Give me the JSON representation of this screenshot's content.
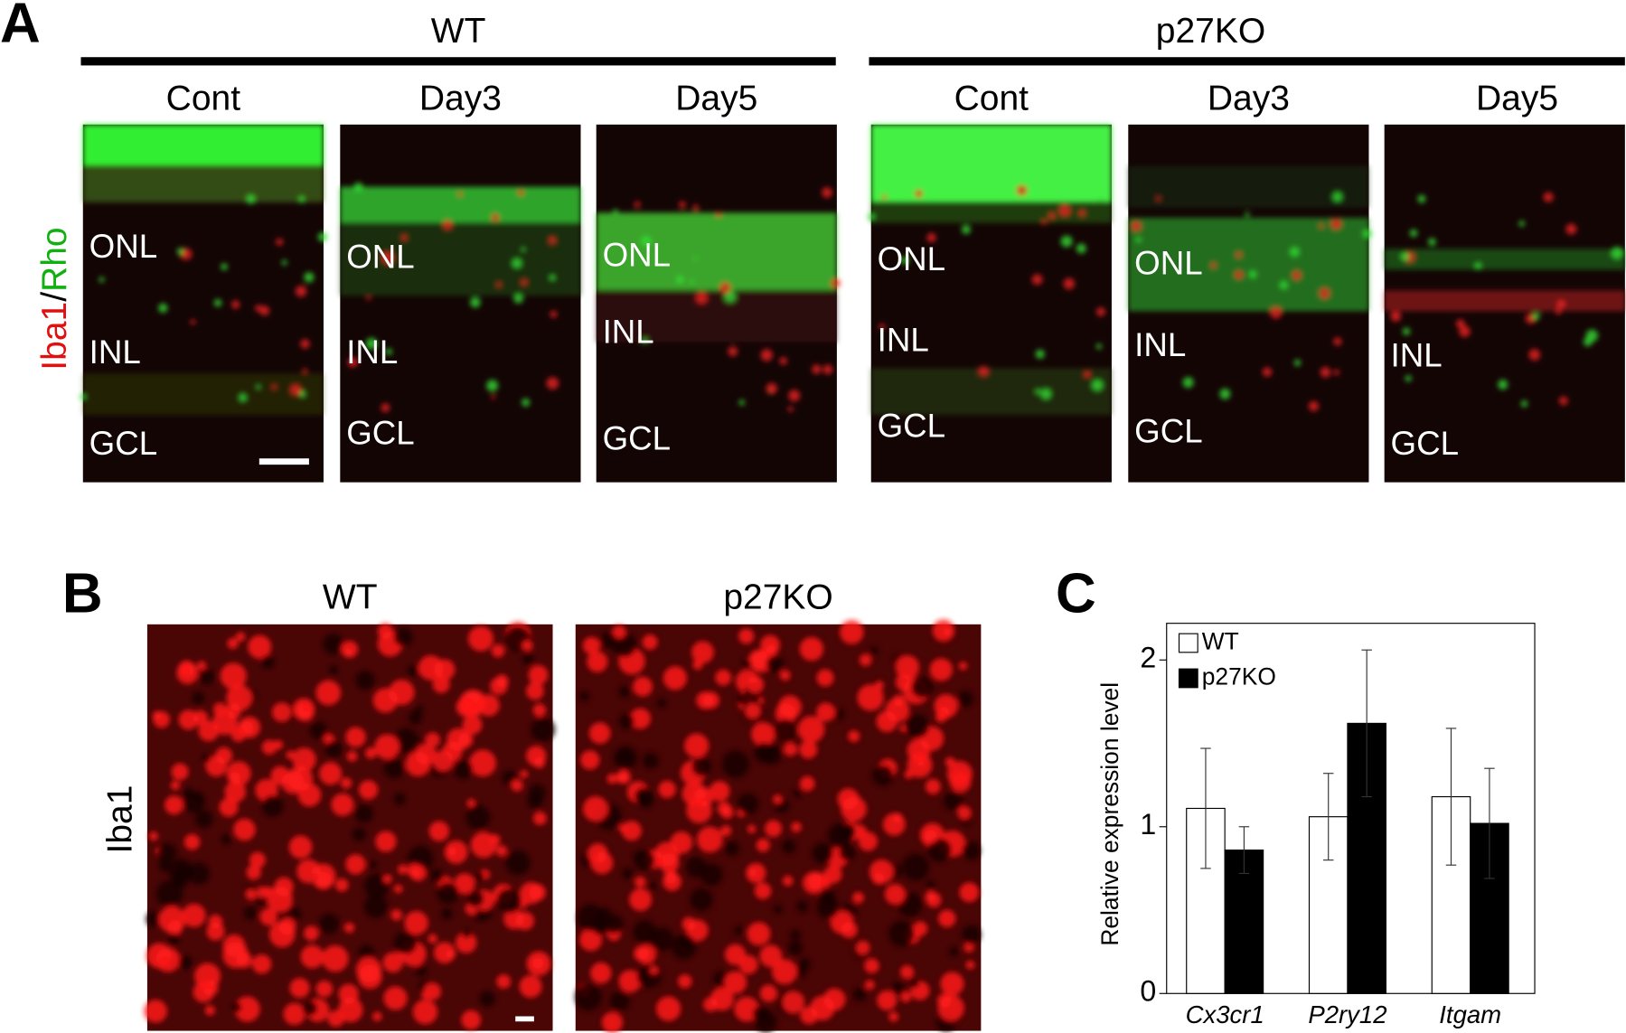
{
  "panel_a": {
    "label": "A",
    "stain_label": {
      "red": "Iba1",
      "separator": "/",
      "green": "Rho"
    },
    "groups": [
      {
        "title": "WT",
        "images": [
          {
            "title": "Cont",
            "layers": [
              "ONL",
              "INL",
              "GCL"
            ]
          },
          {
            "title": "Day3",
            "layers": [
              "ONL",
              "INL",
              "GCL"
            ]
          },
          {
            "title": "Day5",
            "layers": [
              "ONL",
              "INL",
              "GCL"
            ]
          }
        ]
      },
      {
        "title": "p27KO",
        "images": [
          {
            "title": "Cont",
            "layers": [
              "ONL",
              "INL",
              "GCL"
            ]
          },
          {
            "title": "Day3",
            "layers": [
              "ONL",
              "INL",
              "GCL"
            ]
          },
          {
            "title": "Day5",
            "layers": [
              "INL",
              "GCL"
            ]
          }
        ]
      }
    ]
  },
  "panel_b": {
    "label": "B",
    "stain_label": "Iba1",
    "images": [
      "WT",
      "p27KO"
    ]
  },
  "chart_data": {
    "type": "bar",
    "panel_label": "C",
    "ylabel": "Relative expression level",
    "categories": [
      "Cx3cr1",
      "P2ry12",
      "Itgam"
    ],
    "series": [
      {
        "name": "WT",
        "color": "#ffffff",
        "values": [
          1.11,
          1.06,
          1.18
        ],
        "errors": [
          0.36,
          0.26,
          0.41
        ]
      },
      {
        "name": "p27KO",
        "color": "#000000",
        "values": [
          0.86,
          1.62,
          1.02
        ],
        "errors": [
          0.14,
          0.44,
          0.33
        ]
      }
    ],
    "ylim": [
      0,
      2.22
    ],
    "yticks": [
      0,
      1,
      2
    ],
    "legend": "top-left"
  }
}
